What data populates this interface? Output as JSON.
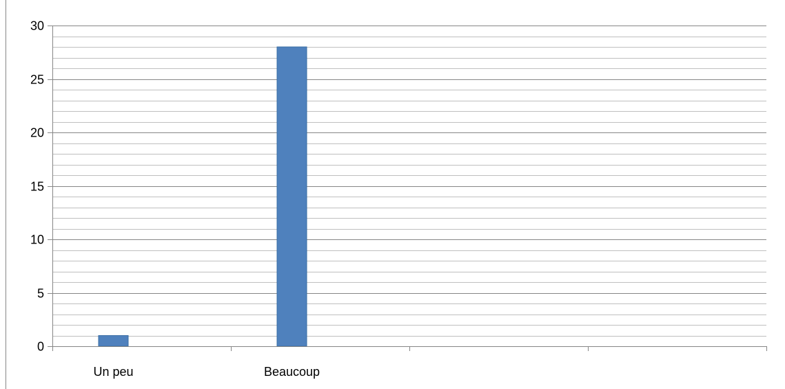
{
  "chart_data": {
    "type": "bar",
    "title": "",
    "xlabel": "",
    "ylabel": "",
    "categories": [
      "Un peu",
      "Beaucoup",
      "",
      ""
    ],
    "values": [
      1,
      28,
      0,
      0
    ],
    "ylim": [
      0,
      30
    ],
    "yticks": [
      0,
      5,
      10,
      15,
      20,
      25,
      30
    ],
    "minor_step": 1,
    "grid": true,
    "legend": "none",
    "colors": {
      "bar": "#4f81bd",
      "bar_edge": "#3a6ea5",
      "major_grid": "#868686",
      "minor_grid": "#bfbfbf",
      "axis": "#868686",
      "frame": "#868686"
    }
  }
}
